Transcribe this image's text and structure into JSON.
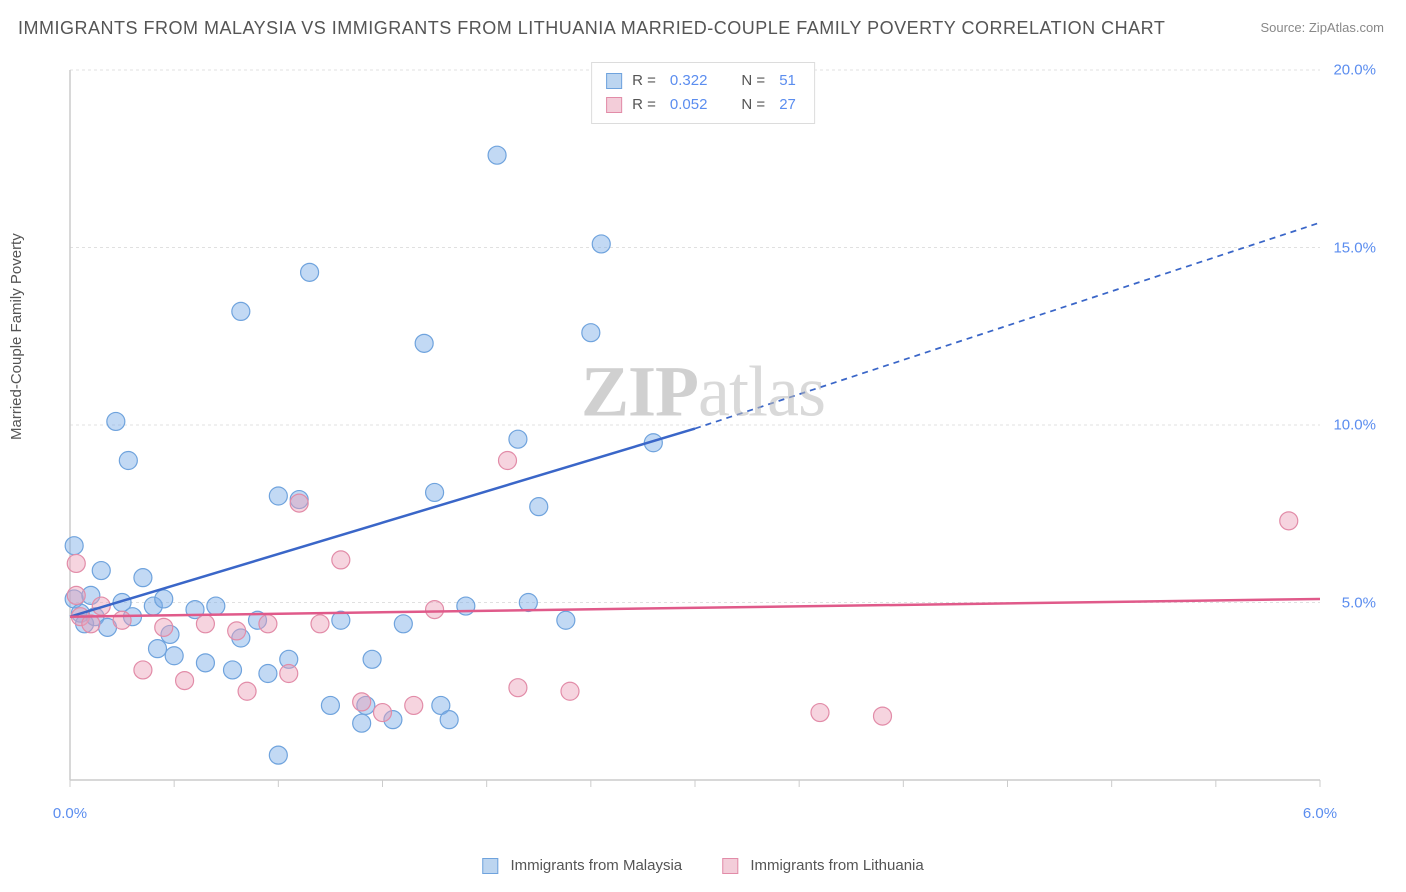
{
  "title": "IMMIGRANTS FROM MALAYSIA VS IMMIGRANTS FROM LITHUANIA MARRIED-COUPLE FAMILY POVERTY CORRELATION CHART",
  "source": "Source: ZipAtlas.com",
  "ylabel": "Married-Couple Family Poverty",
  "watermark_zip": "ZIP",
  "watermark_atlas": "atlas",
  "chart": {
    "xlim": [
      0.0,
      6.0
    ],
    "ylim": [
      0.0,
      20.0
    ],
    "xticks": [
      0.0,
      6.0
    ],
    "xtick_labels": [
      "0.0%",
      "6.0%"
    ],
    "yticks": [
      5.0,
      10.0,
      15.0,
      20.0
    ],
    "ytick_labels": [
      "5.0%",
      "10.0%",
      "15.0%",
      "20.0%"
    ],
    "grid_color": "#e0e0e0",
    "axis_color": "#cccccc",
    "background_color": "#ffffff"
  },
  "series": [
    {
      "name": "Immigrants from Malaysia",
      "color_fill": "rgba(120,170,230,0.45)",
      "color_stroke": "#6fa3dd",
      "swatch_fill": "#bcd5f0",
      "swatch_stroke": "#6fa3dd",
      "marker_radius": 9,
      "R": "0.322",
      "N": "51",
      "trend": {
        "color": "#3a66c8",
        "width": 2.5,
        "x1": 0.0,
        "y1": 4.6,
        "x2": 3.0,
        "y2": 9.9,
        "x2_dash": 6.0,
        "y2_dash": 15.7
      },
      "points": [
        [
          0.02,
          6.6
        ],
        [
          0.02,
          5.1
        ],
        [
          0.05,
          4.7
        ],
        [
          0.07,
          4.4
        ],
        [
          0.1,
          5.2
        ],
        [
          0.12,
          4.6
        ],
        [
          0.15,
          5.9
        ],
        [
          0.18,
          4.3
        ],
        [
          0.22,
          10.1
        ],
        [
          0.25,
          5.0
        ],
        [
          0.28,
          9.0
        ],
        [
          0.3,
          4.6
        ],
        [
          0.35,
          5.7
        ],
        [
          0.4,
          4.9
        ],
        [
          0.42,
          3.7
        ],
        [
          0.45,
          5.1
        ],
        [
          0.48,
          4.1
        ],
        [
          0.5,
          3.5
        ],
        [
          0.6,
          4.8
        ],
        [
          0.65,
          3.3
        ],
        [
          0.7,
          4.9
        ],
        [
          0.78,
          3.1
        ],
        [
          0.82,
          13.2
        ],
        [
          0.82,
          4.0
        ],
        [
          0.9,
          4.5
        ],
        [
          0.95,
          3.0
        ],
        [
          1.0,
          0.7
        ],
        [
          1.0,
          8.0
        ],
        [
          1.05,
          3.4
        ],
        [
          1.1,
          7.9
        ],
        [
          1.15,
          14.3
        ],
        [
          1.25,
          2.1
        ],
        [
          1.3,
          4.5
        ],
        [
          1.4,
          1.6
        ],
        [
          1.42,
          2.1
        ],
        [
          1.45,
          3.4
        ],
        [
          1.55,
          1.7
        ],
        [
          1.6,
          4.4
        ],
        [
          1.7,
          12.3
        ],
        [
          1.75,
          8.1
        ],
        [
          1.78,
          2.1
        ],
        [
          1.82,
          1.7
        ],
        [
          1.9,
          4.9
        ],
        [
          2.05,
          17.6
        ],
        [
          2.15,
          9.6
        ],
        [
          2.2,
          5.0
        ],
        [
          2.25,
          7.7
        ],
        [
          2.38,
          4.5
        ],
        [
          2.5,
          12.6
        ],
        [
          2.55,
          15.1
        ],
        [
          2.8,
          9.5
        ]
      ]
    },
    {
      "name": "Immigrants from Lithuania",
      "color_fill": "rgba(235,160,185,0.45)",
      "color_stroke": "#e28ca8",
      "swatch_fill": "#f3cdd9",
      "swatch_stroke": "#e28ca8",
      "marker_radius": 9,
      "R": "0.052",
      "N": "27",
      "trend": {
        "color": "#e05a8a",
        "width": 2.5,
        "x1": 0.0,
        "y1": 4.6,
        "x2": 6.0,
        "y2": 5.1
      },
      "points": [
        [
          0.03,
          6.1
        ],
        [
          0.03,
          5.2
        ],
        [
          0.05,
          4.6
        ],
        [
          0.1,
          4.4
        ],
        [
          0.15,
          4.9
        ],
        [
          0.25,
          4.5
        ],
        [
          0.35,
          3.1
        ],
        [
          0.45,
          4.3
        ],
        [
          0.55,
          2.8
        ],
        [
          0.65,
          4.4
        ],
        [
          0.8,
          4.2
        ],
        [
          0.85,
          2.5
        ],
        [
          0.95,
          4.4
        ],
        [
          1.05,
          3.0
        ],
        [
          1.1,
          7.8
        ],
        [
          1.2,
          4.4
        ],
        [
          1.3,
          6.2
        ],
        [
          1.4,
          2.2
        ],
        [
          1.5,
          1.9
        ],
        [
          1.65,
          2.1
        ],
        [
          1.75,
          4.8
        ],
        [
          2.1,
          9.0
        ],
        [
          2.15,
          2.6
        ],
        [
          2.4,
          2.5
        ],
        [
          3.6,
          1.9
        ],
        [
          3.9,
          1.8
        ],
        [
          5.85,
          7.3
        ]
      ]
    }
  ],
  "legend_stats_label_R": "R  =",
  "legend_stats_label_N": "N  ="
}
